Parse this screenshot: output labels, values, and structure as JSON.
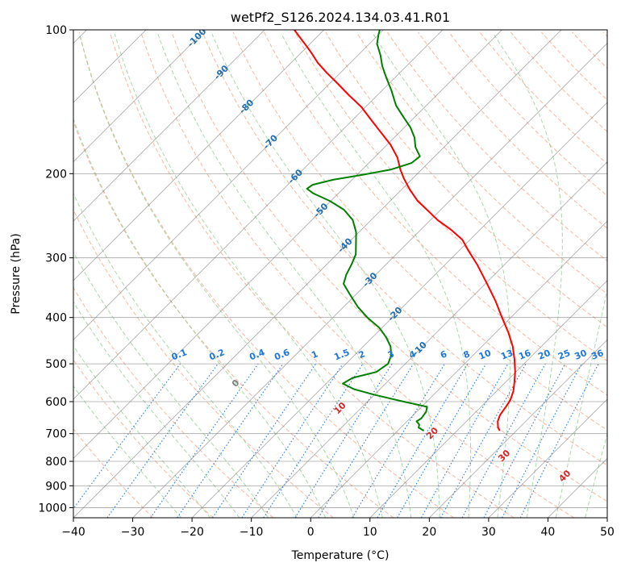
{
  "chart_data": {
    "type": "line",
    "subtype": "skew-t log-p diagram",
    "title": "wetPf2_S126.2024.134.03.41.R01",
    "xlabel": "Temperature (°C)",
    "ylabel": "Pressure (hPa)",
    "xlim": [
      -40,
      50
    ],
    "ylim": [
      1050,
      100
    ],
    "y_scale": "log",
    "grid": true,
    "x_ticks": [
      "−40",
      "−30",
      "−20",
      "−10",
      "0",
      "10",
      "20",
      "30",
      "40",
      "50"
    ],
    "y_ticks": [
      {
        "p": 100,
        "label": "100"
      },
      {
        "p": 200,
        "label": "200"
      },
      {
        "p": 300,
        "label": "300"
      },
      {
        "p": 400,
        "label": "400"
      },
      {
        "p": 500,
        "label": "500"
      },
      {
        "p": 600,
        "label": "600"
      },
      {
        "p": 700,
        "label": "700"
      },
      {
        "p": 800,
        "label": "800"
      },
      {
        "p": 900,
        "label": "900"
      },
      {
        "p": 1000,
        "label": "1000"
      }
    ],
    "isotherm_labels": [
      {
        "t": -100,
        "label": "-100"
      },
      {
        "t": -90,
        "label": "-90"
      },
      {
        "t": -80,
        "label": "-80"
      },
      {
        "t": -70,
        "label": "-70"
      },
      {
        "t": -60,
        "label": "-60"
      },
      {
        "t": -50,
        "label": "-50"
      },
      {
        "t": -40,
        "label": "-40"
      },
      {
        "t": -30,
        "label": "-30"
      },
      {
        "t": -20,
        "label": "-20"
      },
      {
        "t": -10,
        "label": "-10"
      }
    ],
    "mixing_ratio_labels": [
      "0.1",
      "0.2",
      "0.4",
      "0.6",
      "1",
      "1.5",
      "2",
      "3",
      "4",
      "6",
      "8",
      "10",
      "13",
      "16",
      "20",
      "25",
      "30",
      "36"
    ],
    "moist_adiabat_labels": [
      {
        "t": 0,
        "label": "0"
      },
      {
        "t": 10,
        "label": "10"
      },
      {
        "t": 20,
        "label": "20"
      },
      {
        "t": 30,
        "label": "30"
      },
      {
        "t": 40,
        "label": "40"
      }
    ],
    "colors": {
      "temperature": "#ff0000",
      "dewpoint": "#008000",
      "isotherm": "#808080",
      "dry_adiabat": "#f0a080",
      "moist_adiabat": "#90c890",
      "mixing_ratio": "#1e78dc",
      "isotherm_label": "#1f6fb0",
      "moist_label_warm": "#d62728",
      "moist_label_zero": "#808080"
    },
    "series": [
      {
        "key": "temperature",
        "points": [
          {
            "p": 690,
            "t": 17.2
          },
          {
            "p": 680,
            "t": 16.4
          },
          {
            "p": 660,
            "t": 15.3
          },
          {
            "p": 640,
            "t": 14.6
          },
          {
            "p": 615,
            "t": 14.2
          },
          {
            "p": 595,
            "t": 13.8
          },
          {
            "p": 570,
            "t": 12.8
          },
          {
            "p": 550,
            "t": 11.7
          },
          {
            "p": 520,
            "t": 9.9
          },
          {
            "p": 490,
            "t": 7.7
          },
          {
            "p": 460,
            "t": 5.2
          },
          {
            "p": 430,
            "t": 2.1
          },
          {
            "p": 400,
            "t": -1.5
          },
          {
            "p": 370,
            "t": -5.3
          },
          {
            "p": 340,
            "t": -9.7
          },
          {
            "p": 310,
            "t": -14.6
          },
          {
            "p": 290,
            "t": -18.4
          },
          {
            "p": 275,
            "t": -21.3
          },
          {
            "p": 262,
            "t": -24.9
          },
          {
            "p": 250,
            "t": -28.8
          },
          {
            "p": 240,
            "t": -31.7
          },
          {
            "p": 228,
            "t": -35.4
          },
          {
            "p": 216,
            "t": -38.6
          },
          {
            "p": 205,
            "t": -41.4
          },
          {
            "p": 196,
            "t": -43.6
          },
          {
            "p": 185,
            "t": -46.1
          },
          {
            "p": 174,
            "t": -49.4
          },
          {
            "p": 164,
            "t": -53.1
          },
          {
            "p": 155,
            "t": -56.6
          },
          {
            "p": 145,
            "t": -60.7
          },
          {
            "p": 137,
            "t": -64.8
          },
          {
            "p": 130,
            "t": -68.4
          },
          {
            "p": 123,
            "t": -72.3
          },
          {
            "p": 117,
            "t": -75.6
          },
          {
            "p": 112,
            "t": -78.1
          },
          {
            "p": 108,
            "t": -80.3
          },
          {
            "p": 103,
            "t": -83.2
          },
          {
            "p": 100,
            "t": -85.0
          }
        ]
      },
      {
        "key": "dewpoint",
        "points": [
          {
            "p": 690,
            "t": 4.4
          },
          {
            "p": 680,
            "t": 3.0
          },
          {
            "p": 670,
            "t": 2.6
          },
          {
            "p": 660,
            "t": 1.6
          },
          {
            "p": 650,
            "t": 1.9
          },
          {
            "p": 630,
            "t": 1.6
          },
          {
            "p": 615,
            "t": 0.9
          },
          {
            "p": 600,
            "t": -3.9
          },
          {
            "p": 580,
            "t": -10.1
          },
          {
            "p": 565,
            "t": -14.4
          },
          {
            "p": 550,
            "t": -17.2
          },
          {
            "p": 535,
            "t": -16.5
          },
          {
            "p": 520,
            "t": -13.5
          },
          {
            "p": 500,
            "t": -12.9
          },
          {
            "p": 480,
            "t": -13.8
          },
          {
            "p": 460,
            "t": -15.4
          },
          {
            "p": 440,
            "t": -17.7
          },
          {
            "p": 420,
            "t": -20.5
          },
          {
            "p": 400,
            "t": -24.2
          },
          {
            "p": 380,
            "t": -27.6
          },
          {
            "p": 360,
            "t": -30.7
          },
          {
            "p": 340,
            "t": -33.9
          },
          {
            "p": 325,
            "t": -35.0
          },
          {
            "p": 310,
            "t": -35.8
          },
          {
            "p": 295,
            "t": -36.8
          },
          {
            "p": 280,
            "t": -38.6
          },
          {
            "p": 265,
            "t": -40.5
          },
          {
            "p": 250,
            "t": -43.1
          },
          {
            "p": 238,
            "t": -46.3
          },
          {
            "p": 228,
            "t": -50.2
          },
          {
            "p": 220,
            "t": -54.2
          },
          {
            "p": 215,
            "t": -56.1
          },
          {
            "p": 211,
            "t": -55.8
          },
          {
            "p": 206,
            "t": -53.2
          },
          {
            "p": 201,
            "t": -49.0
          },
          {
            "p": 196,
            "t": -45.1
          },
          {
            "p": 190,
            "t": -42.8
          },
          {
            "p": 184,
            "t": -42.5
          },
          {
            "p": 176,
            "t": -44.8
          },
          {
            "p": 168,
            "t": -46.6
          },
          {
            "p": 160,
            "t": -49.0
          },
          {
            "p": 152,
            "t": -52.0
          },
          {
            "p": 144,
            "t": -55.1
          },
          {
            "p": 134,
            "t": -58.4
          },
          {
            "p": 126,
            "t": -61.4
          },
          {
            "p": 119,
            "t": -64.1
          },
          {
            "p": 113,
            "t": -66.2
          },
          {
            "p": 107,
            "t": -68.7
          },
          {
            "p": 102,
            "t": -70.1
          },
          {
            "p": 100,
            "t": -70.6
          }
        ]
      }
    ]
  }
}
